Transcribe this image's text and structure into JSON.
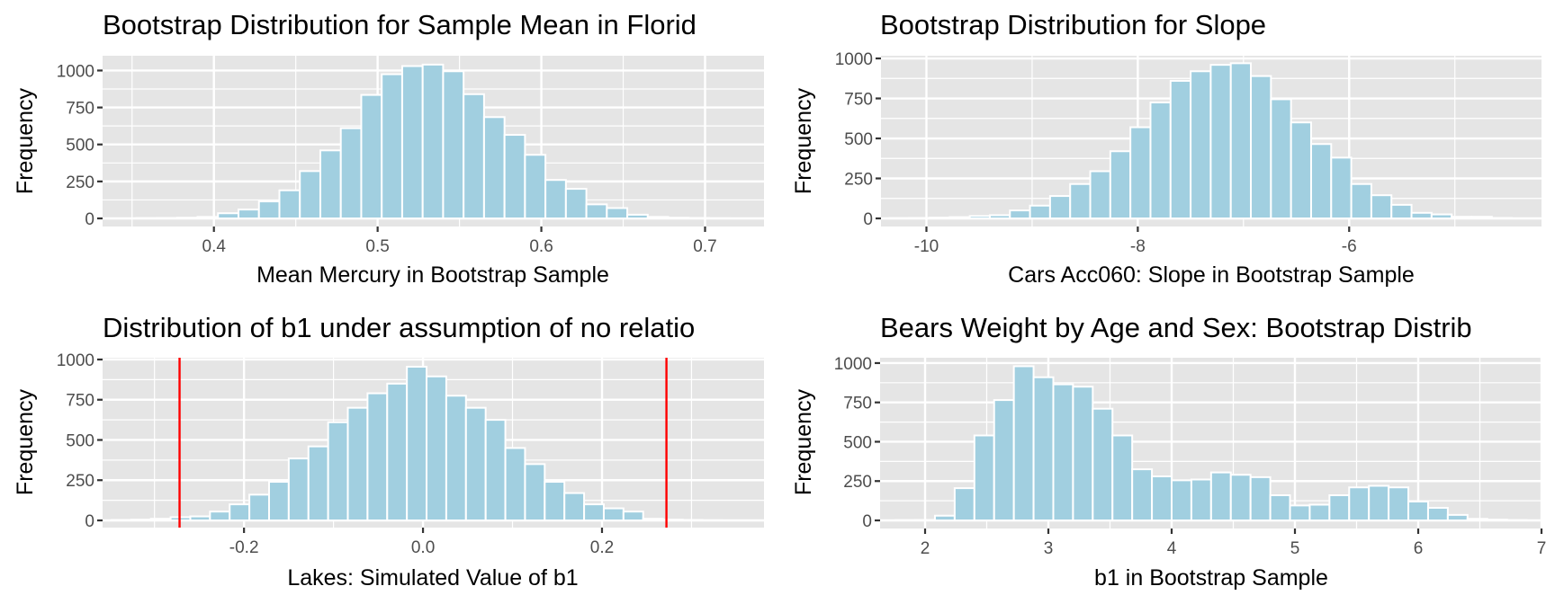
{
  "chart_data": [
    {
      "type": "bar",
      "title": "Bootstrap Distribution for Sample Mean in Florid",
      "xlabel": "Mean Mercury in Bootstrap Sample",
      "ylabel": "Frequency",
      "bin_start": 0.3525,
      "bin_width": 0.0125,
      "values": [
        2,
        3,
        5,
        10,
        35,
        60,
        115,
        190,
        320,
        460,
        610,
        835,
        975,
        1030,
        1040,
        995,
        840,
        685,
        565,
        430,
        260,
        200,
        95,
        70,
        25,
        10,
        5,
        3,
        1
      ],
      "xlim": [
        0.332,
        0.736
      ],
      "ylim": [
        0,
        1000
      ],
      "ylim_display_top": 1100,
      "xticks": [
        0.4,
        0.5,
        0.6,
        0.7
      ],
      "xtick_labels": [
        "0.4",
        "0.5",
        "0.6",
        "0.7"
      ],
      "yticks": [
        0,
        250,
        500,
        750,
        1000
      ],
      "ytick_labels": [
        "0",
        "250",
        "500",
        "750",
        "1000"
      ],
      "vlines": [],
      "grid": true
    },
    {
      "type": "bar",
      "title": "Bootstrap Distribution for Slope",
      "xlabel": "Cars Acc060: Slope in Bootstrap Sample",
      "ylabel": "Frequency",
      "bin_start": -10.35,
      "bin_width": 0.19,
      "values": [
        2,
        3,
        5,
        8,
        15,
        20,
        50,
        80,
        140,
        215,
        295,
        420,
        570,
        725,
        860,
        920,
        960,
        970,
        890,
        745,
        600,
        465,
        380,
        215,
        145,
        85,
        35,
        25,
        10,
        10,
        3
      ],
      "xlim": [
        -10.43,
        -4.18
      ],
      "ylim": [
        0,
        1000
      ],
      "ylim_display_top": 1017,
      "xticks": [
        -10,
        -8,
        -6
      ],
      "xtick_labels": [
        "-10",
        "-8",
        "-6"
      ],
      "yticks": [
        0,
        250,
        500,
        750,
        1000
      ],
      "ytick_labels": [
        "0",
        "250",
        "500",
        "750",
        "1000"
      ],
      "vlines": [],
      "grid": true
    },
    {
      "type": "bar",
      "title": "Distribution of b1 under assumption of no relatio",
      "xlabel": "Lakes: Simulated Value of b1",
      "ylabel": "Frequency",
      "bin_start": -0.348,
      "bin_width": 0.022,
      "values": [
        3,
        5,
        10,
        20,
        25,
        55,
        100,
        160,
        240,
        385,
        460,
        610,
        700,
        790,
        850,
        955,
        895,
        775,
        700,
        625,
        450,
        350,
        240,
        170,
        100,
        75,
        55,
        10,
        5,
        3,
        1
      ],
      "xlim": [
        -0.358,
        0.381
      ],
      "ylim": [
        0,
        1000
      ],
      "ylim_display_top": 1011,
      "xticks": [
        -0.2,
        0.0,
        0.2
      ],
      "xtick_labels": [
        "-0.2",
        "0.0",
        "0.2"
      ],
      "yticks": [
        0,
        250,
        500,
        750,
        1000
      ],
      "ytick_labels": [
        "0",
        "250",
        "500",
        "750",
        "1000"
      ],
      "vlines": [
        -0.272,
        0.272
      ],
      "vline_color": "#ff0000",
      "grid": true
    },
    {
      "type": "bar",
      "title": "Bears Weight by Age and Sex: Bootstrap Distrib",
      "xlabel": "b1 in Bootstrap Sample",
      "ylabel": "Frequency",
      "bin_start": 1.76,
      "bin_width": 0.16,
      "values": [
        2,
        3,
        30,
        205,
        540,
        765,
        980,
        910,
        865,
        850,
        710,
        540,
        325,
        280,
        255,
        260,
        305,
        290,
        275,
        160,
        95,
        100,
        160,
        210,
        220,
        210,
        120,
        80,
        35,
        10,
        5,
        2
      ],
      "xlim": [
        1.635,
        7.0
      ],
      "ylim": [
        0,
        1000
      ],
      "ylim_display_top": 1034,
      "xticks": [
        2,
        3,
        4,
        5,
        6,
        7
      ],
      "xtick_labels": [
        "2",
        "3",
        "4",
        "5",
        "6",
        "7"
      ],
      "yticks": [
        0,
        250,
        500,
        750,
        1000
      ],
      "ytick_labels": [
        "0",
        "250",
        "500",
        "750",
        "1000"
      ],
      "vlines": [],
      "grid": true
    }
  ],
  "colors": {
    "bar_fill": "#a1cfe0",
    "bar_outline": "#ffffff",
    "panel_bg": "#e5e5e5",
    "grid": "#ffffff",
    "vline": "#ff0000"
  }
}
